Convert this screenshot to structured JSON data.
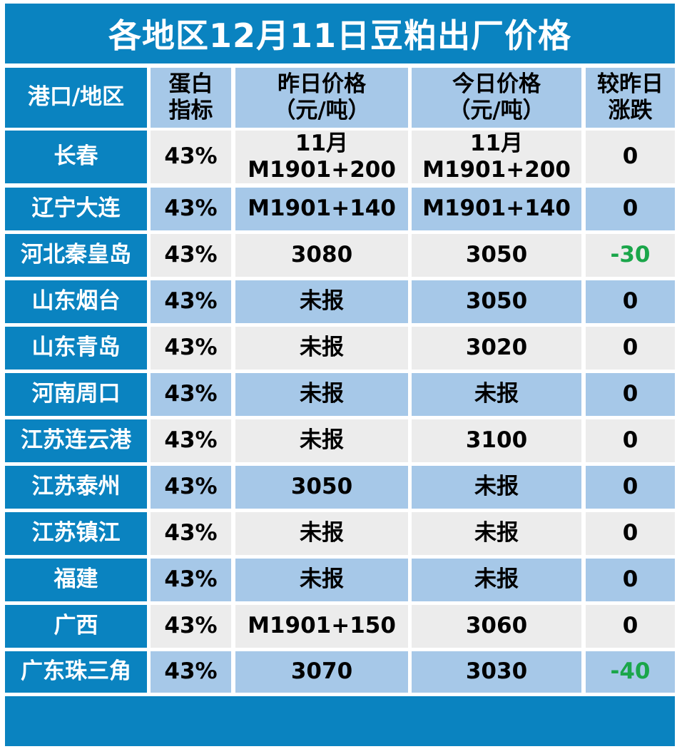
{
  "title": "各地区12月11日豆粕出厂价格",
  "headers": {
    "region": "港口/地区",
    "protein_l1": "蛋白",
    "protein_l2": "指标",
    "yesterday_l1": "昨日价格",
    "yesterday_l2": "（元/吨）",
    "today_l1": "今日价格",
    "today_l2": "（元/吨）",
    "change_l1": "较昨日",
    "change_l2": "涨跌"
  },
  "rows": [
    {
      "region": "长春",
      "protein": "43%",
      "yesterday_l1": "11月",
      "yesterday_l2": "M1901+200",
      "today_l1": "11月",
      "today_l2": "M1901+200",
      "change": "0"
    },
    {
      "region": "辽宁大连",
      "protein": "43%",
      "yesterday": "M1901+140",
      "today": "M1901+140",
      "change": "0"
    },
    {
      "region": "河北秦皇岛",
      "protein": "43%",
      "yesterday": "3080",
      "today": "3050",
      "change": "-30"
    },
    {
      "region": "山东烟台",
      "protein": "43%",
      "yesterday": "未报",
      "today": "3050",
      "change": "0"
    },
    {
      "region": "山东青岛",
      "protein": "43%",
      "yesterday": "未报",
      "today": "3020",
      "change": "0"
    },
    {
      "region": "河南周口",
      "protein": "43%",
      "yesterday": "未报",
      "today": "未报",
      "change": "0"
    },
    {
      "region": "江苏连云港",
      "protein": "43%",
      "yesterday": "未报",
      "today": "3100",
      "change": "0"
    },
    {
      "region": "江苏泰州",
      "protein": "43%",
      "yesterday": "3050",
      "today": "未报",
      "change": "0"
    },
    {
      "region": "江苏镇江",
      "protein": "43%",
      "yesterday": "未报",
      "today": "未报",
      "change": "0"
    },
    {
      "region": "福建",
      "protein": "43%",
      "yesterday": "未报",
      "today": "未报",
      "change": "0"
    },
    {
      "region": "广西",
      "protein": "43%",
      "yesterday": "M1901+150",
      "today": "3060",
      "change": "0"
    },
    {
      "region": "广东珠三角",
      "protein": "43%",
      "yesterday": "3070",
      "today": "3030",
      "change": "-40"
    }
  ],
  "colors": {
    "title_bg": "#0a83c0",
    "header_bg": "#a6c8e8",
    "row_gray": "#ececec",
    "row_blue": "#a6c8e8",
    "negative": "#1aa64a"
  }
}
